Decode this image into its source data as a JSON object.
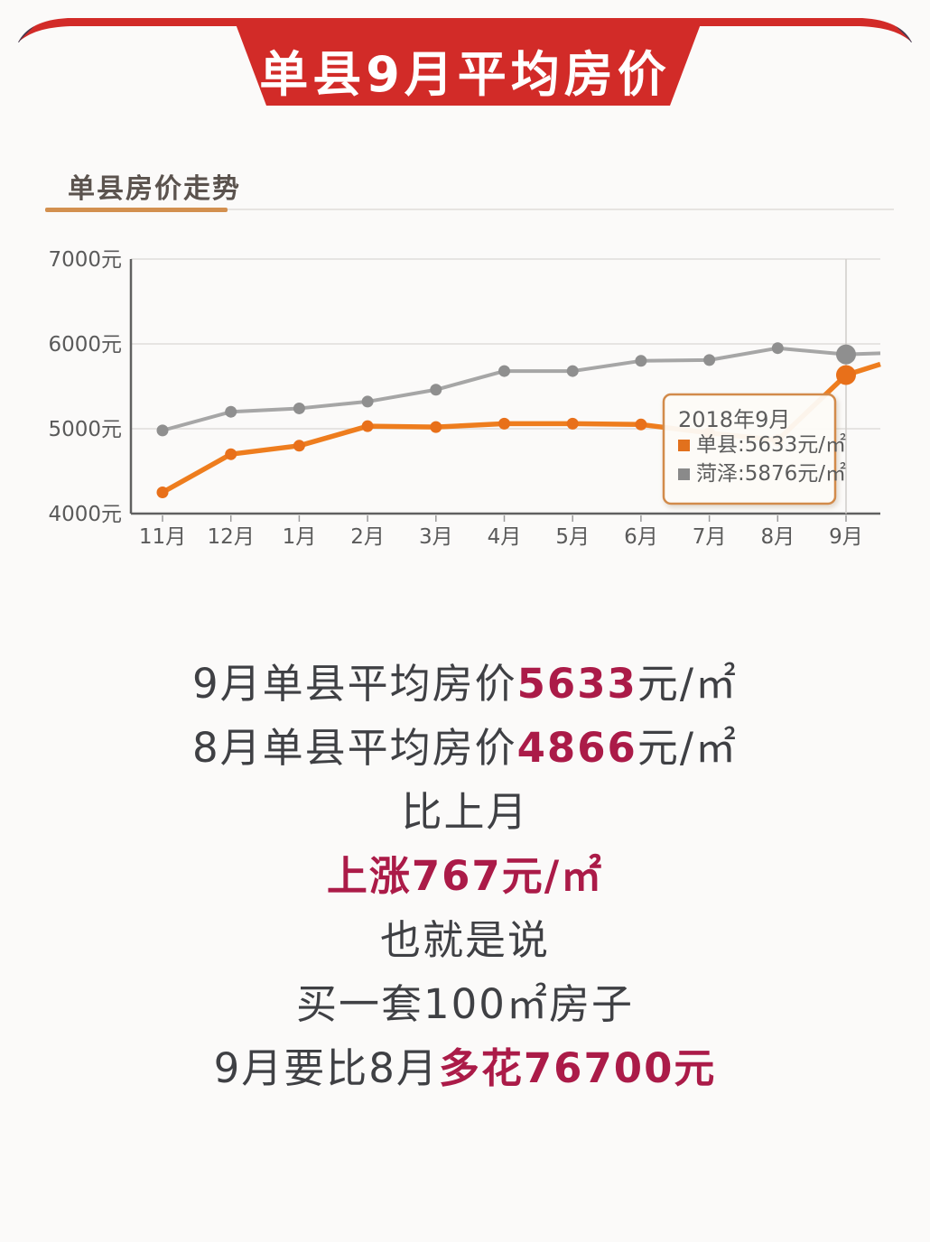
{
  "banner": {
    "title": "单县9月平均房价",
    "color": "#d22b28",
    "text_color": "#ffffff"
  },
  "chart_header": {
    "title": "单县房价走势",
    "accent_color": "#d3904f"
  },
  "chart_data": {
    "type": "line",
    "title": "单县房价走势",
    "categories": [
      "11月",
      "12月",
      "1月",
      "2月",
      "3月",
      "4月",
      "5月",
      "6月",
      "7月",
      "8月",
      "9月"
    ],
    "ylabel": "元/㎡",
    "ylim": [
      4000,
      7000
    ],
    "yticks": [
      4000,
      5000,
      6000,
      7000
    ],
    "ytick_suffix": "元",
    "grid": true,
    "legend_position": "tooltip",
    "series": [
      {
        "name": "菏泽",
        "color": "#a6a6a6",
        "dot_color": "#8f8f8f",
        "values": [
          4980,
          5200,
          5240,
          5320,
          5460,
          5680,
          5680,
          5800,
          5810,
          5950,
          5876
        ],
        "edge_extension": 5890
      },
      {
        "name": "单县",
        "color": "#ee7d1e",
        "dot_color": "#e8701a",
        "values": [
          4250,
          4700,
          4800,
          5030,
          5020,
          5060,
          5060,
          5050,
          4950,
          4866,
          5633
        ],
        "edge_extension": 5760
      }
    ],
    "highlight_index": 10,
    "tooltip": {
      "title": "2018年9月",
      "rows": [
        {
          "label": "单县",
          "value": "5633元/㎡",
          "swatch": "#e2711d"
        },
        {
          "label": "菏泽",
          "value": "5876元/㎡",
          "swatch": "#8a8a8a"
        }
      ]
    }
  },
  "summary": {
    "accent_color": "#ab1b48",
    "lines": [
      {
        "pre": "9月单县平均房价",
        "hl": "5633",
        "post": "元/㎡"
      },
      {
        "pre": "8月单县平均房价",
        "hl": "4866",
        "post": "元/㎡"
      },
      {
        "pre": "比上月",
        "hl": "",
        "post": ""
      },
      {
        "pre": "",
        "hl": "上涨767元/㎡",
        "post": ""
      },
      {
        "pre": "也就是说",
        "hl": "",
        "post": ""
      },
      {
        "pre": "买一套100㎡房子",
        "hl": "",
        "post": ""
      },
      {
        "pre": "9月要比8月",
        "hl": "多花76700元",
        "post": ""
      }
    ]
  }
}
